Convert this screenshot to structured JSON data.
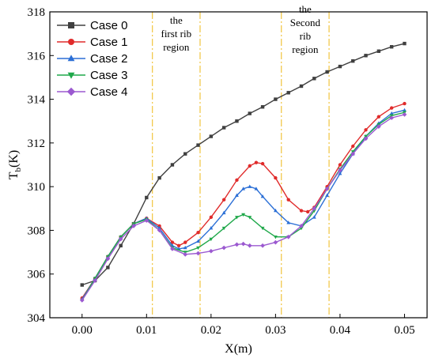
{
  "chart_data": {
    "type": "line",
    "xlabel": "X(m)",
    "ylabel_main": "T",
    "ylabel_sub": "b",
    "ylabel_unit": "(K)",
    "xlim": [
      -0.005,
      0.0535
    ],
    "ylim": [
      304,
      318
    ],
    "xticks": [
      0.0,
      0.01,
      0.02,
      0.03,
      0.04,
      0.05
    ],
    "xtick_labels": [
      "0.00",
      "0.01",
      "0.02",
      "0.03",
      "0.04",
      "0.05"
    ],
    "yticks": [
      304,
      306,
      308,
      310,
      312,
      314,
      316,
      318
    ],
    "ytick_labels": [
      "304",
      "306",
      "308",
      "310",
      "312",
      "314",
      "316",
      "318"
    ],
    "legend_position": "top-left",
    "grid": false,
    "region_lines": [
      0.0109,
      0.0183,
      0.0309,
      0.0383
    ],
    "region_line_color": "#f2c94c",
    "region_labels": [
      {
        "lines": [
          "the",
          "first rib",
          "region"
        ],
        "x": 0.0146,
        "y_top": 317.6
      },
      {
        "lines": [
          "the",
          "Second",
          "rib",
          "region"
        ],
        "x": 0.0346,
        "y_top": 318.1
      }
    ],
    "series": [
      {
        "name": "Case 0",
        "color": "#404040",
        "marker": "square",
        "points": [
          [
            0.0,
            305.5
          ],
          [
            0.002,
            305.7
          ],
          [
            0.004,
            306.3
          ],
          [
            0.006,
            307.3
          ],
          [
            0.008,
            308.3
          ],
          [
            0.01,
            309.5
          ],
          [
            0.012,
            310.4
          ],
          [
            0.014,
            311.0
          ],
          [
            0.016,
            311.5
          ],
          [
            0.018,
            311.9
          ],
          [
            0.02,
            312.3
          ],
          [
            0.022,
            312.7
          ],
          [
            0.024,
            313.0
          ],
          [
            0.026,
            313.35
          ],
          [
            0.028,
            313.65
          ],
          [
            0.03,
            314.0
          ],
          [
            0.032,
            314.3
          ],
          [
            0.034,
            314.6
          ],
          [
            0.036,
            314.95
          ],
          [
            0.038,
            315.25
          ],
          [
            0.04,
            315.5
          ],
          [
            0.042,
            315.75
          ],
          [
            0.044,
            316.0
          ],
          [
            0.046,
            316.2
          ],
          [
            0.048,
            316.4
          ],
          [
            0.05,
            316.55
          ]
        ]
      },
      {
        "name": "Case 1",
        "color": "#e02b2b",
        "marker": "circle",
        "points": [
          [
            0.0,
            304.9
          ],
          [
            0.002,
            305.8
          ],
          [
            0.004,
            306.8
          ],
          [
            0.006,
            307.7
          ],
          [
            0.008,
            308.3
          ],
          [
            0.01,
            308.55
          ],
          [
            0.012,
            308.2
          ],
          [
            0.014,
            307.45
          ],
          [
            0.015,
            307.3
          ],
          [
            0.016,
            307.45
          ],
          [
            0.018,
            307.9
          ],
          [
            0.02,
            308.6
          ],
          [
            0.022,
            309.4
          ],
          [
            0.024,
            310.3
          ],
          [
            0.026,
            310.95
          ],
          [
            0.027,
            311.1
          ],
          [
            0.028,
            311.05
          ],
          [
            0.03,
            310.4
          ],
          [
            0.032,
            309.4
          ],
          [
            0.034,
            308.9
          ],
          [
            0.035,
            308.85
          ],
          [
            0.036,
            309.05
          ],
          [
            0.038,
            310.0
          ],
          [
            0.04,
            311.0
          ],
          [
            0.042,
            311.85
          ],
          [
            0.044,
            312.6
          ],
          [
            0.046,
            313.2
          ],
          [
            0.048,
            313.6
          ],
          [
            0.05,
            313.8
          ]
        ]
      },
      {
        "name": "Case 2",
        "color": "#2b6fd6",
        "marker": "triangle-up",
        "points": [
          [
            0.0,
            304.85
          ],
          [
            0.002,
            305.8
          ],
          [
            0.004,
            306.8
          ],
          [
            0.006,
            307.7
          ],
          [
            0.008,
            308.3
          ],
          [
            0.01,
            308.55
          ],
          [
            0.012,
            308.1
          ],
          [
            0.014,
            307.3
          ],
          [
            0.015,
            307.15
          ],
          [
            0.016,
            307.2
          ],
          [
            0.018,
            307.5
          ],
          [
            0.02,
            308.1
          ],
          [
            0.022,
            308.8
          ],
          [
            0.024,
            309.6
          ],
          [
            0.025,
            309.9
          ],
          [
            0.026,
            310.0
          ],
          [
            0.027,
            309.9
          ],
          [
            0.028,
            309.55
          ],
          [
            0.03,
            308.9
          ],
          [
            0.032,
            308.35
          ],
          [
            0.034,
            308.2
          ],
          [
            0.036,
            308.6
          ],
          [
            0.038,
            309.6
          ],
          [
            0.04,
            310.6
          ],
          [
            0.042,
            311.5
          ],
          [
            0.044,
            312.3
          ],
          [
            0.046,
            312.9
          ],
          [
            0.048,
            313.35
          ],
          [
            0.05,
            313.5
          ]
        ]
      },
      {
        "name": "Case 3",
        "color": "#1fa84a",
        "marker": "triangle-down",
        "points": [
          [
            0.0,
            304.8
          ],
          [
            0.002,
            305.8
          ],
          [
            0.004,
            306.8
          ],
          [
            0.006,
            307.7
          ],
          [
            0.008,
            308.3
          ],
          [
            0.01,
            308.5
          ],
          [
            0.012,
            308.0
          ],
          [
            0.014,
            307.2
          ],
          [
            0.016,
            307.0
          ],
          [
            0.018,
            307.2
          ],
          [
            0.02,
            307.6
          ],
          [
            0.022,
            308.1
          ],
          [
            0.024,
            308.6
          ],
          [
            0.025,
            308.72
          ],
          [
            0.026,
            308.6
          ],
          [
            0.028,
            308.1
          ],
          [
            0.03,
            307.7
          ],
          [
            0.032,
            307.7
          ],
          [
            0.034,
            308.1
          ],
          [
            0.036,
            308.9
          ],
          [
            0.038,
            309.9
          ],
          [
            0.04,
            310.8
          ],
          [
            0.042,
            311.6
          ],
          [
            0.044,
            312.3
          ],
          [
            0.046,
            312.85
          ],
          [
            0.048,
            313.25
          ],
          [
            0.05,
            313.4
          ]
        ]
      },
      {
        "name": "Case 4",
        "color": "#9b59d0",
        "marker": "diamond",
        "points": [
          [
            0.0,
            304.8
          ],
          [
            0.002,
            305.7
          ],
          [
            0.004,
            306.7
          ],
          [
            0.006,
            307.6
          ],
          [
            0.008,
            308.2
          ],
          [
            0.01,
            308.45
          ],
          [
            0.012,
            308.0
          ],
          [
            0.014,
            307.15
          ],
          [
            0.016,
            306.9
          ],
          [
            0.018,
            306.95
          ],
          [
            0.02,
            307.05
          ],
          [
            0.022,
            307.2
          ],
          [
            0.024,
            307.35
          ],
          [
            0.025,
            307.38
          ],
          [
            0.026,
            307.3
          ],
          [
            0.028,
            307.3
          ],
          [
            0.03,
            307.45
          ],
          [
            0.032,
            307.7
          ],
          [
            0.034,
            308.2
          ],
          [
            0.036,
            309.0
          ],
          [
            0.038,
            309.9
          ],
          [
            0.04,
            310.75
          ],
          [
            0.042,
            311.5
          ],
          [
            0.044,
            312.2
          ],
          [
            0.046,
            312.75
          ],
          [
            0.048,
            313.15
          ],
          [
            0.05,
            313.3
          ]
        ]
      }
    ]
  }
}
